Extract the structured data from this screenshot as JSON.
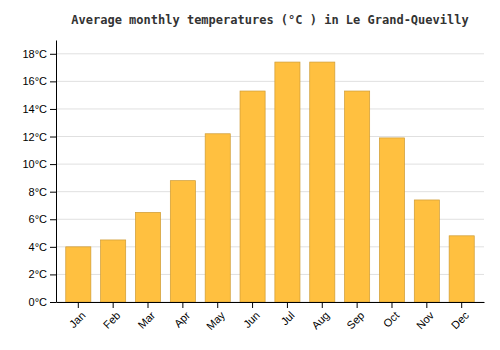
{
  "chart_data": {
    "type": "bar",
    "title": "Average monthly temperatures (°C ) in Le Grand-Quevilly",
    "categories": [
      "Jan",
      "Feb",
      "Mar",
      "Apr",
      "May",
      "Jun",
      "Jul",
      "Aug",
      "Sep",
      "Oct",
      "Nov",
      "Dec"
    ],
    "values": [
      4.0,
      4.5,
      6.5,
      8.8,
      12.2,
      15.3,
      17.4,
      17.4,
      15.3,
      11.9,
      7.4,
      4.8
    ],
    "color": "#FFC040",
    "ylim": [
      0,
      19
    ],
    "yticks": [
      {
        "value": 0,
        "label": "0°C"
      },
      {
        "value": 2,
        "label": "2°C"
      },
      {
        "value": 4,
        "label": "4°C"
      },
      {
        "value": 6,
        "label": "6°C"
      },
      {
        "value": 8,
        "label": "8°C"
      },
      {
        "value": 10,
        "label": "10°C"
      },
      {
        "value": 12,
        "label": "12°C"
      },
      {
        "value": 14,
        "label": "14°C"
      },
      {
        "value": 16,
        "label": "16°C"
      },
      {
        "value": 18,
        "label": "18°C"
      }
    ],
    "grid": true
  }
}
